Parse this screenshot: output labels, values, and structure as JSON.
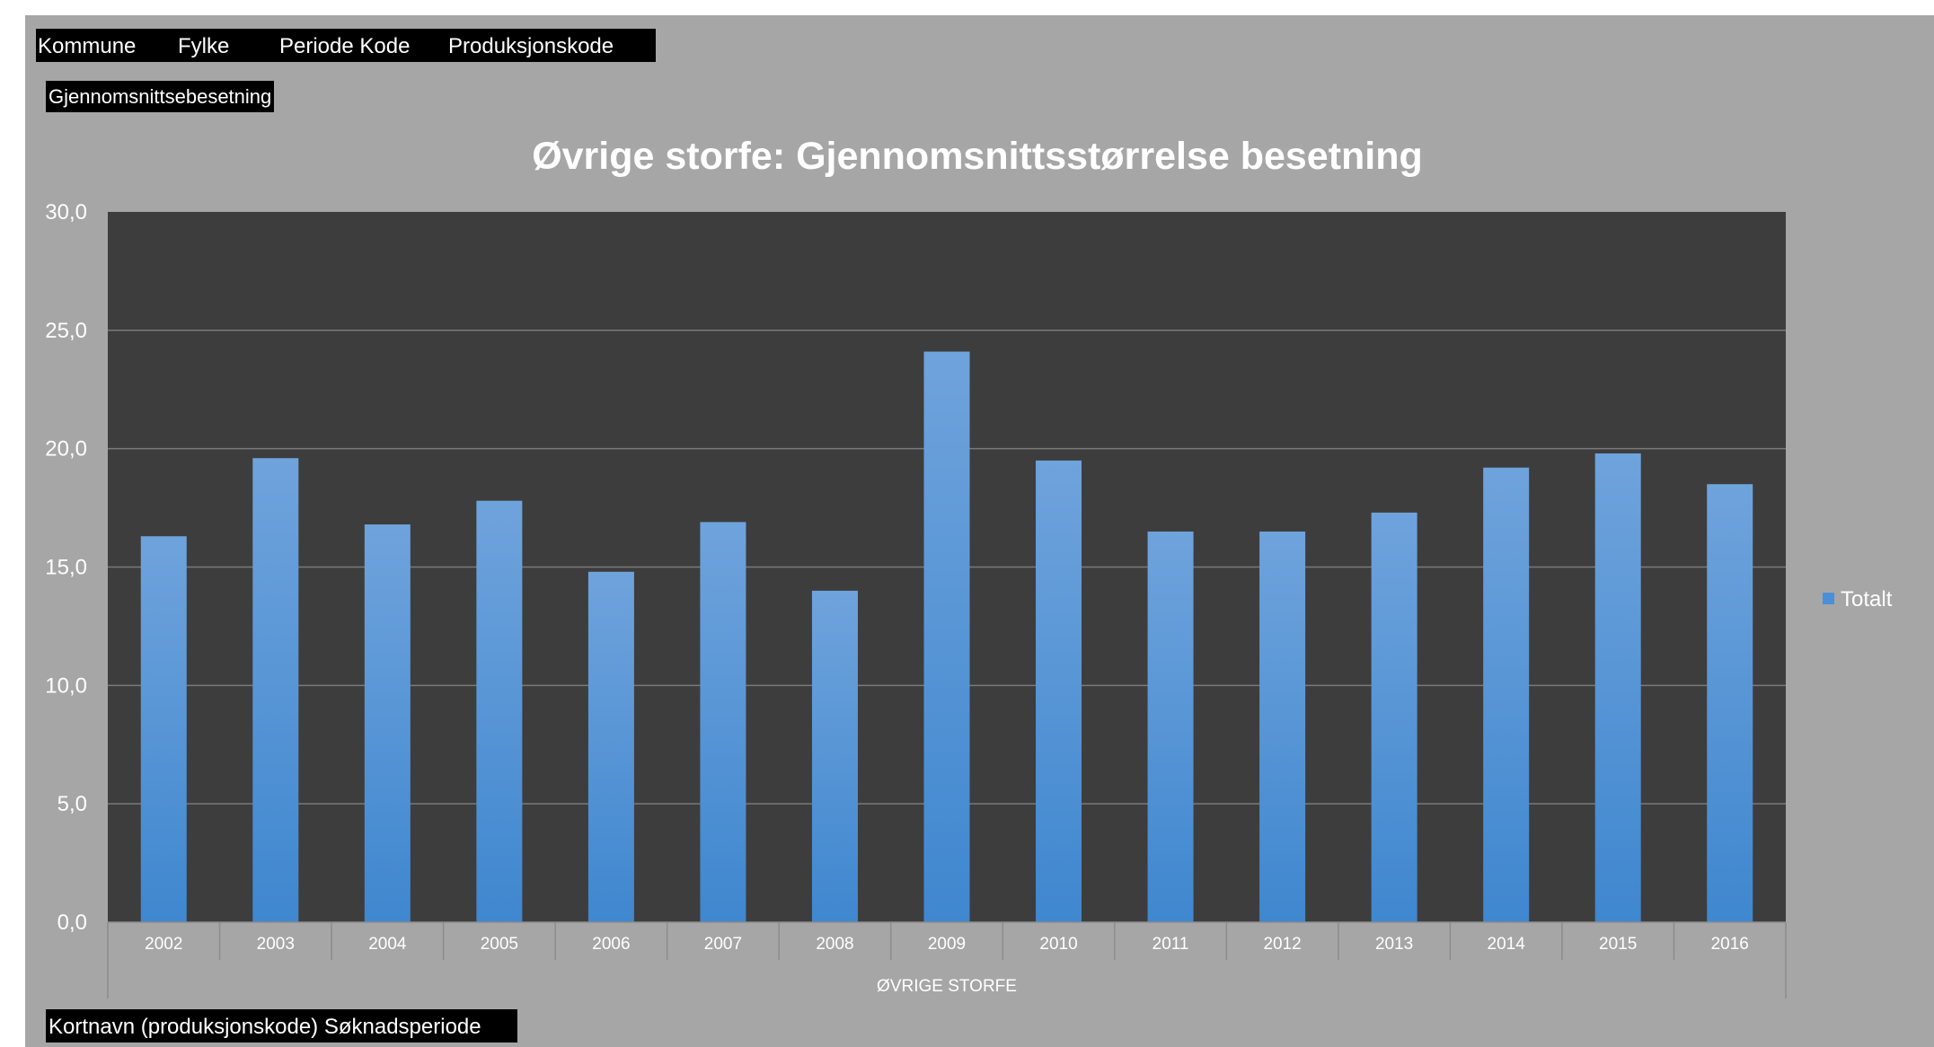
{
  "pivot_fields": {
    "filters": [
      "Kommune",
      "Fylke",
      "Periode Kode",
      "Produksjonskode"
    ],
    "value_field": "Gjennomsnittsebesetning",
    "axis_field": "Kortnavn (produksjonskode) Søknadsperiode"
  },
  "colors": {
    "background": "#a6a6a6",
    "plot_area": "#3d3d3d",
    "bar_top": "#6fa3dc",
    "bar_bottom": "#3f87cf",
    "text": "#ffffff"
  },
  "chart_data": {
    "type": "bar",
    "title": "Øvrige storfe: Gjennomsnittsstørrelse besetning",
    "category_group": "ØVRIGE STORFE",
    "categories": [
      "2002",
      "2003",
      "2004",
      "2005",
      "2006",
      "2007",
      "2008",
      "2009",
      "2010",
      "2011",
      "2012",
      "2013",
      "2014",
      "2015",
      "2016"
    ],
    "series": [
      {
        "name": "Totalt",
        "values": [
          16.3,
          19.6,
          16.8,
          17.8,
          14.8,
          16.9,
          14.0,
          24.1,
          19.5,
          16.5,
          16.5,
          17.3,
          19.2,
          19.8,
          18.5
        ]
      }
    ],
    "ylim": [
      0,
      30
    ],
    "yticks": [
      "0,0",
      "5,0",
      "10,0",
      "15,0",
      "20,0",
      "25,0",
      "30,0"
    ],
    "grid": true,
    "legend_position": "right"
  }
}
